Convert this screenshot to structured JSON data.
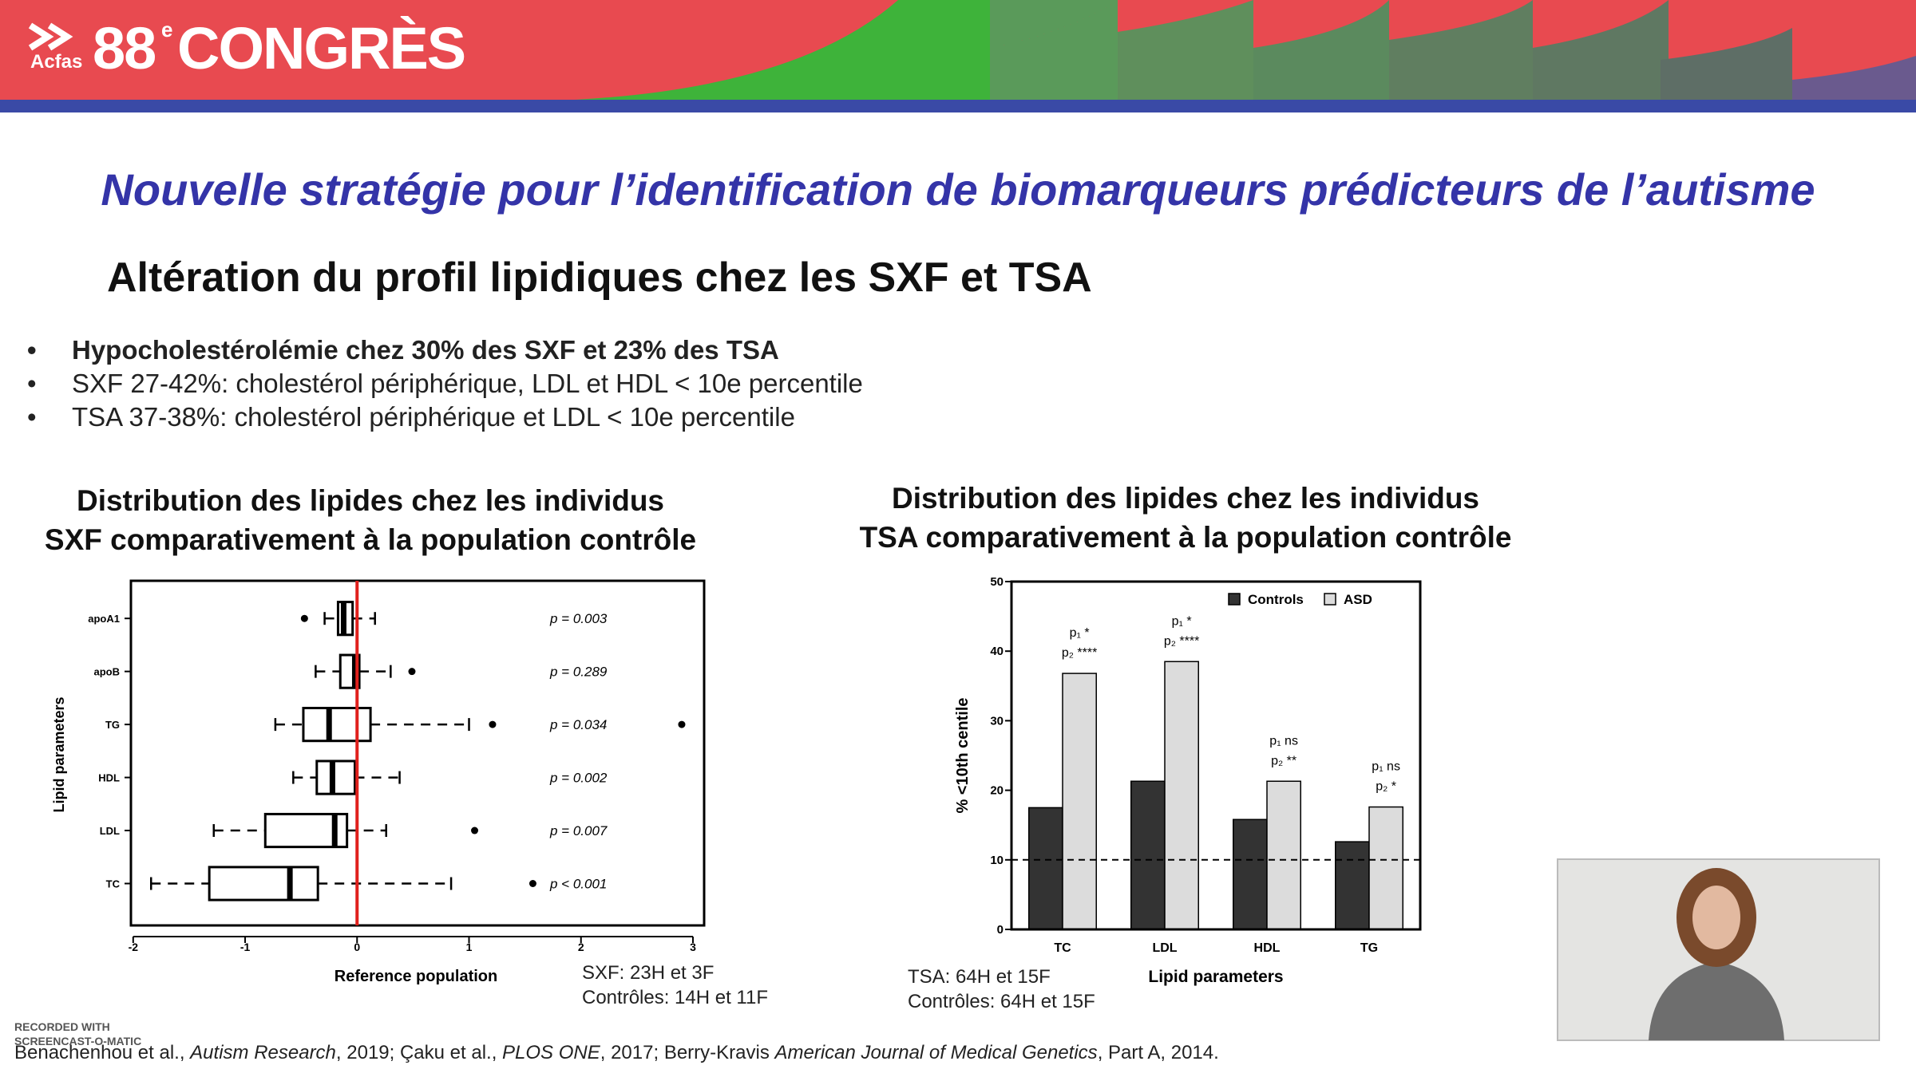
{
  "header": {
    "logo": "Acfas",
    "number": "88",
    "superscript": "e",
    "word": "CONGRÈS"
  },
  "title": "Nouvelle stratégie pour l’identification de biomarqueurs prédicteurs de l’autisme",
  "subtitle": "Altération du profil lipidiques chez les SXF et TSA",
  "bullets": [
    "Hypocholestérolémie chez 30% des SXF et 23% des TSA",
    "SXF 27-42%: cholestérol périphérique, LDL et HDL < 10e percentile",
    "TSA 37-38%: cholestérol périphérique et LDL < 10e percentile"
  ],
  "chart_data": [
    {
      "type": "box",
      "title": [
        "Distribution des lipides chez les individus",
        "SXF comparativement à la population contrôle"
      ],
      "x_label": "Reference population",
      "y_label": "Lipid parameters",
      "categories": [
        "apoA1",
        "apoB",
        "TG",
        "HDL",
        "LDL",
        "TC"
      ],
      "boxes": [
        {
          "whisker_low": -0.29,
          "q1": -0.17,
          "median": -0.12,
          "q3": -0.04,
          "whisker_high": 0.16,
          "outliers": [
            -0.47
          ]
        },
        {
          "whisker_low": -0.37,
          "q1": -0.15,
          "median": -0.02,
          "q3": 0.02,
          "whisker_high": 0.3,
          "outliers": [
            0.49
          ]
        },
        {
          "whisker_low": -0.73,
          "q1": -0.48,
          "median": -0.25,
          "q3": 0.12,
          "whisker_high": 1.0,
          "outliers": [
            1.21,
            2.9
          ]
        },
        {
          "whisker_low": -0.57,
          "q1": -0.36,
          "median": -0.22,
          "q3": -0.02,
          "whisker_high": 0.38,
          "outliers": []
        },
        {
          "whisker_low": -1.28,
          "q1": -0.82,
          "median": -0.2,
          "q3": -0.09,
          "whisker_high": 0.26,
          "outliers": [
            1.05
          ]
        },
        {
          "whisker_low": -1.84,
          "q1": -1.32,
          "median": -0.6,
          "q3": -0.35,
          "whisker_high": 0.84,
          "outliers": [
            1.57
          ]
        }
      ],
      "annotations": [
        "p = 0.003",
        "p = 0.289",
        "p = 0.034",
        "p = 0.002",
        "p = 0.007",
        "p < 0.001"
      ],
      "reference_line": 0,
      "reference_color": "#e0201c",
      "xlim": [
        -2.02,
        3.1
      ],
      "xticks": [
        -2,
        -1,
        0,
        1,
        2,
        3
      ],
      "notes": [
        "SXF: 23H et 3F",
        "Contrôles: 14H et 11F"
      ]
    },
    {
      "type": "bar",
      "title": [
        "Distribution des lipides chez les individus",
        "TSA comparativement à la population contrôle"
      ],
      "x_label": "Lipid parameters",
      "y_label": "% <10th centile",
      "categories": [
        "TC",
        "LDL",
        "HDL",
        "TG"
      ],
      "series": [
        {
          "name": "Controls",
          "color": "#333333",
          "values": [
            17.5,
            21.3,
            15.8,
            12.6
          ]
        },
        {
          "name": "ASD",
          "color": "#dcdcdc",
          "values": [
            36.8,
            38.5,
            21.3,
            17.6
          ]
        }
      ],
      "annotations": [
        [
          "p₁ *",
          "p₂ ****"
        ],
        [
          "p₁ *",
          "p₂ ****"
        ],
        [
          "p₁ ns",
          "p₂ **"
        ],
        [
          "p₁ ns",
          "p₂ *"
        ]
      ],
      "reference_line": 10,
      "ylim": [
        0,
        50
      ],
      "yticks": [
        0,
        10,
        20,
        30,
        40,
        50
      ],
      "legend": "upper right",
      "notes": [
        "TSA: 64H et 15F",
        "Contrôles: 64H et 15F"
      ]
    }
  ],
  "citation": [
    "Benachenhou et al., ",
    "Autism Research",
    ", 2019; Çaku et al., ",
    "PLOS ONE",
    ", 2017; Berry-Kravis ",
    "American Journal of Medical Genetics",
    ", Part A, 2014."
  ],
  "watermark": [
    "RECORDED WITH",
    "SCREENCAST-O-MATIC"
  ]
}
